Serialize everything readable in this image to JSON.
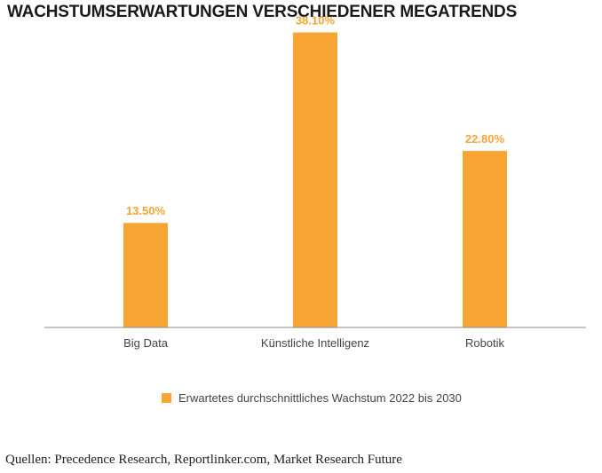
{
  "title": "WACHSTUMSERWARTUNGEN VERSCHIEDENER MEGATRENDS",
  "colors": {
    "bar": "#f7a535",
    "value_label": "#f4a535",
    "axis": "#8a8a8a"
  },
  "chart_data": {
    "type": "bar",
    "categories": [
      "Big Data",
      "Künstliche Intelligenz",
      "Robotik"
    ],
    "series": [
      {
        "name": "Erwartetes durchschnittliches Wachstum 2022 bis 2030",
        "values": [
          13.5,
          38.1,
          22.8
        ],
        "value_labels": [
          "13.50%",
          "38.10%",
          "22.80%"
        ]
      }
    ],
    "ylim": [
      0,
      40
    ],
    "grid": false,
    "legend": "bottom"
  },
  "source": "Quellen: Precedence Research, Reportlinker.com, Market Research Future"
}
